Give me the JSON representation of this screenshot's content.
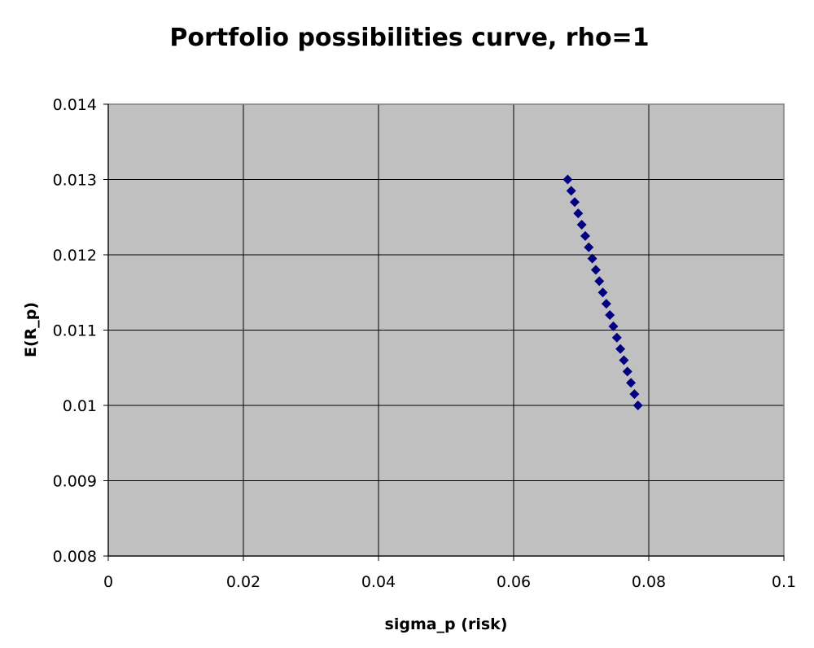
{
  "chart_data": {
    "type": "scatter",
    "title": "Portfolio possibilities curve, rho=1",
    "xlabel": "sigma_p (risk)",
    "ylabel": "E(R_p)",
    "xlim": [
      0,
      0.1
    ],
    "ylim": [
      0.008,
      0.014
    ],
    "x_ticks": [
      "0",
      "0.02",
      "0.04",
      "0.06",
      "0.08",
      "0.1"
    ],
    "y_ticks": [
      "0.008",
      "0.009",
      "0.01",
      "0.011",
      "0.012",
      "0.013",
      "0.014"
    ],
    "grid": true,
    "legend": "none",
    "plot_background": "#c0c0c0",
    "marker": "diamond",
    "marker_color": "#000080",
    "points": [
      {
        "x": 0.068,
        "y": 0.013
      },
      {
        "x": 0.06852,
        "y": 0.01285
      },
      {
        "x": 0.06904,
        "y": 0.0127
      },
      {
        "x": 0.06956,
        "y": 0.01255
      },
      {
        "x": 0.07008,
        "y": 0.0124
      },
      {
        "x": 0.0706,
        "y": 0.01225
      },
      {
        "x": 0.07112,
        "y": 0.0121
      },
      {
        "x": 0.07164,
        "y": 0.01195
      },
      {
        "x": 0.07216,
        "y": 0.0118
      },
      {
        "x": 0.07268,
        "y": 0.01165
      },
      {
        "x": 0.0732,
        "y": 0.0115
      },
      {
        "x": 0.07372,
        "y": 0.01135
      },
      {
        "x": 0.07424,
        "y": 0.0112
      },
      {
        "x": 0.07476,
        "y": 0.01105
      },
      {
        "x": 0.07528,
        "y": 0.0109
      },
      {
        "x": 0.0758,
        "y": 0.01075
      },
      {
        "x": 0.07632,
        "y": 0.0106
      },
      {
        "x": 0.07684,
        "y": 0.01045
      },
      {
        "x": 0.07736,
        "y": 0.0103
      },
      {
        "x": 0.07788,
        "y": 0.01015
      },
      {
        "x": 0.0784,
        "y": 0.01
      }
    ]
  }
}
